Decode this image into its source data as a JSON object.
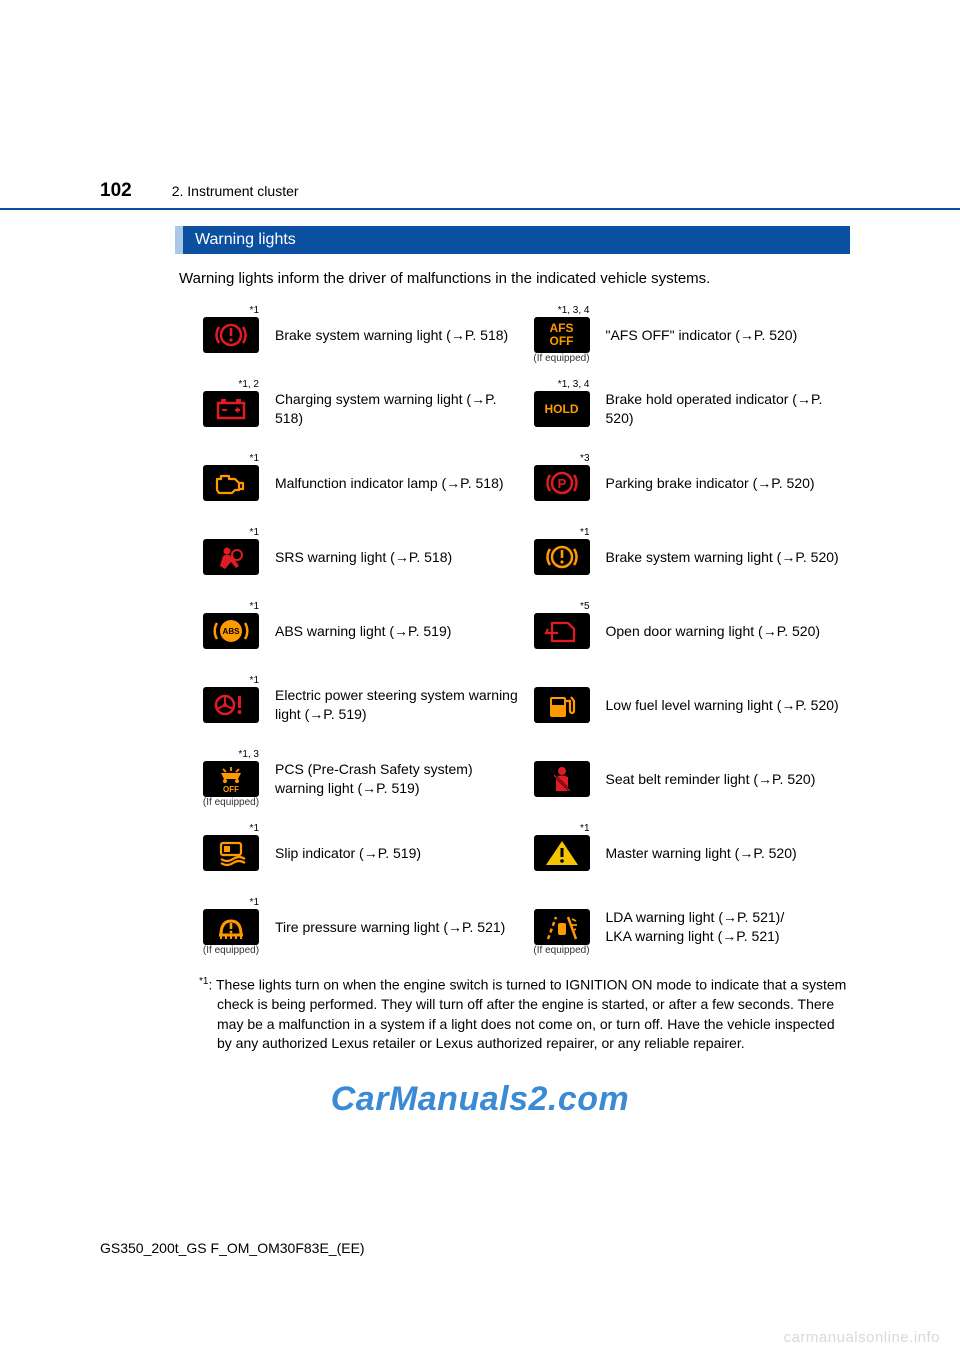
{
  "page_number": "102",
  "chapter_title": "2. Instrument cluster",
  "section_heading": "Warning lights",
  "intro_text": "Warning lights inform the driver of malfunctions in the indicated vehicle systems.",
  "colors": {
    "amber": "#ff9900",
    "red": "#e11b22",
    "yellow": "#f5c400",
    "header_blue": "#0b4fa0",
    "header_tab": "#a9c8e8",
    "watermark_blue": "#3a8ad6",
    "icon_bg": "#000000"
  },
  "items_left": [
    {
      "sup": "*1",
      "sub": "",
      "icon": "brake-red",
      "desc": "Brake system warning light (→P. 518)"
    },
    {
      "sup": "*1, 2",
      "sub": "",
      "icon": "battery",
      "desc": "Charging system warning light (→P. 518)"
    },
    {
      "sup": "*1",
      "sub": "",
      "icon": "engine",
      "desc": "Malfunction indicator lamp (→P. 518)"
    },
    {
      "sup": "*1",
      "sub": "",
      "icon": "srs",
      "desc": "SRS warning light (→P. 518)"
    },
    {
      "sup": "*1",
      "sub": "",
      "icon": "abs",
      "desc": "ABS warning light (→P. 519)"
    },
    {
      "sup": "*1",
      "sub": "",
      "icon": "eps",
      "desc": "Electric power steering system warning light (→P. 519)"
    },
    {
      "sup": "*1, 3",
      "sub": "(If equipped)",
      "icon": "pcs",
      "desc": "PCS (Pre-Crash Safety system) warning light (→P. 519)"
    },
    {
      "sup": "*1",
      "sub": "",
      "icon": "slip",
      "desc": "Slip indicator (→P. 519)"
    },
    {
      "sup": "*1",
      "sub": "(If equipped)",
      "icon": "tire",
      "desc": "Tire pressure warning light (→P. 521)"
    }
  ],
  "items_right": [
    {
      "sup": "*1, 3, 4",
      "sub": "(If equipped)",
      "icon": "afs-off",
      "desc": "\"AFS OFF\" indicator (→P. 520)"
    },
    {
      "sup": "*1, 3, 4",
      "sub": "",
      "icon": "hold",
      "desc": "Brake hold operated indicator (→P. 520)"
    },
    {
      "sup": "*3",
      "sub": "",
      "icon": "parking",
      "desc": "Parking brake indicator (→P. 520)"
    },
    {
      "sup": "*1",
      "sub": "",
      "icon": "brake-amber",
      "desc": "Brake system warning light (→P. 520)"
    },
    {
      "sup": "*5",
      "sub": "",
      "icon": "door",
      "desc": "Open door warning light (→P. 520)"
    },
    {
      "sup": "",
      "sub": "",
      "icon": "fuel",
      "desc": "Low fuel level warning light (→P. 520)"
    },
    {
      "sup": "",
      "sub": "",
      "icon": "seatbelt",
      "desc": "Seat belt reminder light (→P. 520)"
    },
    {
      "sup": "*1",
      "sub": "",
      "icon": "master",
      "desc": "Master warning light (→P. 520)"
    },
    {
      "sup": "",
      "sub": "(If equipped)",
      "icon": "lda",
      "desc": "LDA warning light (→P. 521)/\nLKA warning light (→P. 521)"
    }
  ],
  "footnote": "*1: These lights turn on when the engine switch is turned to IGNITION ON mode to indicate that a system check is being performed. They will turn off after the engine is started, or after a few seconds. There may be a malfunction in a system if a light does not come on, or turn off. Have the vehicle inspected by any authorized Lexus retailer or Lexus authorized repairer, or any reliable repairer.",
  "watermark": "CarManuals2.com",
  "doc_id": "GS350_200t_GS F_OM_OM30F83E_(EE)",
  "site_watermark": "carmanualsonline.info"
}
